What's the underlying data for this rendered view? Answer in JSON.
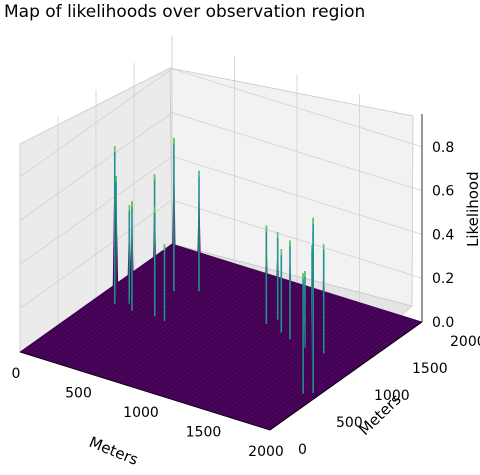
{
  "chart_data": {
    "type": "surface3d",
    "title": "Map of likelihoods over observation region",
    "xlabel": "Meters",
    "ylabel": "Meters",
    "zlabel": "Likelihood",
    "x_ticks": [
      "0",
      "500",
      "1000",
      "1500",
      "2000"
    ],
    "y_ticks": [
      "0",
      "500",
      "1000",
      "1500",
      "2000"
    ],
    "z_ticks": [
      "0.0",
      "0.2",
      "0.4",
      "0.6",
      "0.8"
    ],
    "xlim": [
      0,
      2000
    ],
    "ylim": [
      0,
      2000
    ],
    "zlim": [
      0,
      0.95
    ],
    "grid": true,
    "colormap": "viridis",
    "colors": {
      "surface_base": "#440154",
      "peak_mid": "#21918c",
      "peak_top": "#5ec962"
    },
    "peaks": [
      {
        "x": 100,
        "y": 1100,
        "z": 0.55
      },
      {
        "x": 150,
        "y": 1000,
        "z": 0.72
      },
      {
        "x": 230,
        "y": 1060,
        "z": 0.45
      },
      {
        "x": 300,
        "y": 980,
        "z": 0.5
      },
      {
        "x": 420,
        "y": 1080,
        "z": 0.62
      },
      {
        "x": 470,
        "y": 1000,
        "z": 0.5
      },
      {
        "x": 560,
        "y": 980,
        "z": 0.35
      },
      {
        "x": 380,
        "y": 1400,
        "z": 0.7
      },
      {
        "x": 520,
        "y": 1500,
        "z": 0.55
      },
      {
        "x": 1150,
        "y": 1350,
        "z": 0.45
      },
      {
        "x": 1180,
        "y": 1450,
        "z": 0.4
      },
      {
        "x": 1300,
        "y": 1300,
        "z": 0.38
      },
      {
        "x": 1400,
        "y": 1250,
        "z": 0.45
      },
      {
        "x": 1550,
        "y": 1200,
        "z": 0.35
      },
      {
        "x": 1700,
        "y": 1200,
        "z": 0.5
      },
      {
        "x": 1850,
        "y": 800,
        "z": 0.62
      },
      {
        "x": 1920,
        "y": 700,
        "z": 0.72
      },
      {
        "x": 1950,
        "y": 650,
        "z": 0.8
      },
      {
        "x": 1900,
        "y": 600,
        "z": 0.55
      }
    ]
  }
}
